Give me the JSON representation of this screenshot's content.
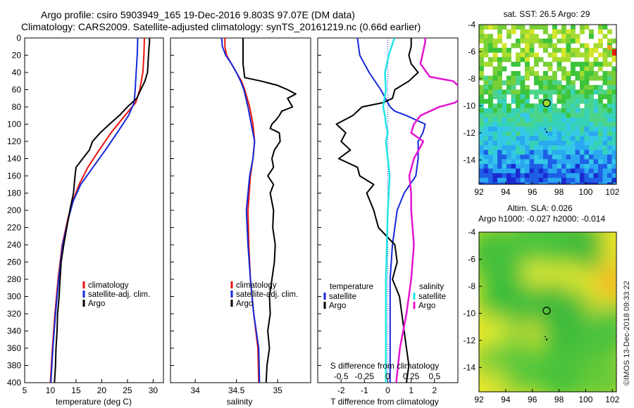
{
  "title": {
    "line1": "Argo profile: csiro 5903949_165 19-Dec-2016 9.803S 97.07E (DM data)",
    "line2": "Climatology: CARS2009. Satellite-adjusted climatology: synTS_20161219.nc (0.66d earlier)"
  },
  "watermark": "©IMOS 13-Dec-2018 09:33:22",
  "colors": {
    "climatology": "#e8130e",
    "satellite": "#1428d8",
    "argo": "#000000",
    "satellite_s": "#1ee6e6",
    "salinity": "#e614d2"
  },
  "chart_data": [
    {
      "id": "temperature",
      "type": "line",
      "xlabel": "temperature (deg C)",
      "ylabel": "",
      "xlim": [
        5,
        32
      ],
      "ylim": [
        400,
        0
      ],
      "xticks": [
        "5",
        "10",
        "15",
        "20",
        "25",
        "30"
      ],
      "xtick_values": [
        5,
        10,
        15,
        20,
        25,
        30
      ],
      "yticks": [
        "0",
        "20",
        "40",
        "60",
        "80",
        "100",
        "120",
        "140",
        "160",
        "180",
        "200",
        "220",
        "240",
        "260",
        "280",
        "300",
        "320",
        "340",
        "360",
        "380",
        "400"
      ],
      "legend": [
        "climatology",
        "satellite-adj. clim.",
        "Argo"
      ],
      "series": [
        {
          "name": "climatology",
          "depth": [
            0,
            20,
            40,
            60,
            75,
            90,
            110,
            130,
            150,
            170,
            190,
            210,
            240,
            280,
            320,
            360,
            400
          ],
          "values": [
            28.3,
            28.2,
            28.0,
            27.4,
            26.6,
            24.5,
            21.8,
            19.5,
            17.3,
            15.6,
            14.3,
            13.4,
            12.3,
            11.5,
            10.9,
            10.4,
            10.0
          ]
        },
        {
          "name": "satellite-adj. clim.",
          "depth": [
            0,
            20,
            40,
            60,
            75,
            90,
            110,
            130,
            150,
            170,
            190,
            210,
            240,
            280,
            320,
            360,
            400
          ],
          "values": [
            27.0,
            26.9,
            26.7,
            26.5,
            26.3,
            25.2,
            23.0,
            20.7,
            18.3,
            15.9,
            14.4,
            13.5,
            12.4,
            11.6,
            11.0,
            10.5,
            10.1
          ]
        },
        {
          "name": "Argo",
          "depth": [
            0,
            5,
            10,
            20,
            30,
            40,
            50,
            60,
            70,
            80,
            90,
            100,
            110,
            120,
            130,
            140,
            150,
            160,
            180,
            200,
            220,
            240,
            260,
            280,
            300,
            320,
            340,
            360,
            380,
            400
          ],
          "values": [
            29.3,
            29.3,
            29.2,
            29.1,
            29.0,
            28.9,
            28.4,
            27.6,
            26.8,
            25.0,
            23.4,
            21.5,
            19.7,
            18.2,
            17.6,
            16.3,
            15.0,
            14.8,
            14.5,
            13.8,
            13.2,
            12.6,
            12.1,
            11.9,
            11.7,
            11.4,
            11.3,
            11.1,
            11.0,
            10.8
          ]
        }
      ]
    },
    {
      "id": "salinity",
      "type": "line",
      "xlabel": "salinity",
      "xlim": [
        33.7,
        35.4
      ],
      "ylim": [
        400,
        0
      ],
      "xticks": [
        "34",
        "34.5",
        "35"
      ],
      "xtick_values": [
        34,
        34.5,
        35
      ],
      "legend": [
        "climatology",
        "satellite-adj. clim.",
        "Argo"
      ],
      "series": [
        {
          "name": "climatology",
          "depth": [
            0,
            10,
            20,
            30,
            40,
            50,
            60,
            80,
            100,
            120,
            140,
            160,
            200,
            240,
            280,
            320,
            360,
            400
          ],
          "values": [
            34.36,
            34.36,
            34.38,
            34.44,
            34.5,
            34.56,
            34.6,
            34.66,
            34.7,
            34.72,
            34.7,
            34.67,
            34.64,
            34.65,
            34.67,
            34.71,
            34.76,
            34.77
          ]
        },
        {
          "name": "satellite-adj. clim.",
          "depth": [
            0,
            10,
            20,
            30,
            40,
            50,
            60,
            80,
            100,
            120,
            140,
            160,
            200,
            240,
            280,
            320,
            360,
            400
          ],
          "values": [
            34.32,
            34.33,
            34.37,
            34.44,
            34.5,
            34.55,
            34.59,
            34.64,
            34.68,
            34.72,
            34.7,
            34.66,
            34.62,
            34.64,
            34.67,
            34.71,
            34.77,
            34.78
          ]
        },
        {
          "name": "Argo",
          "depth": [
            0,
            5,
            30,
            46,
            50,
            55,
            60,
            65,
            70,
            80,
            85,
            90,
            95,
            100,
            105,
            110,
            120,
            130,
            140,
            150,
            160,
            170,
            180,
            200,
            220,
            240,
            260,
            280,
            300,
            320,
            340,
            360,
            380,
            400
          ],
          "values": [
            34.58,
            34.58,
            34.58,
            34.6,
            34.8,
            35.0,
            35.12,
            35.22,
            35.12,
            35.18,
            35.05,
            35.02,
            34.98,
            34.93,
            34.91,
            35.02,
            35.03,
            34.96,
            34.93,
            34.95,
            34.88,
            34.95,
            34.91,
            34.95,
            34.94,
            34.97,
            34.96,
            34.93,
            34.9,
            34.91,
            34.88,
            34.9,
            34.87,
            34.86
          ]
        }
      ]
    },
    {
      "id": "difference",
      "type": "line",
      "xlabel": "T difference from climatology",
      "xlabel_top": "S difference from climatology",
      "xlim": [
        -3,
        3
      ],
      "ylim": [
        400,
        0
      ],
      "xticks": [
        "-2",
        "-1",
        "0",
        "1",
        "2"
      ],
      "xtick_values": [
        -2,
        -1,
        0,
        1,
        2
      ],
      "sticks": [
        "-0.5",
        "-0.25",
        "0",
        "0.25",
        "0.5"
      ],
      "stick_values": [
        -0.5,
        -0.25,
        0,
        0.25,
        0.5
      ],
      "legend_t": {
        "heading": "temperature",
        "items": [
          "satellite",
          "Argo"
        ]
      },
      "legend_s": {
        "heading": "salinity",
        "items": [
          "satellite",
          "Argo"
        ]
      },
      "series": [
        {
          "name": "T satellite",
          "depth": [
            0,
            20,
            40,
            60,
            80,
            85,
            90,
            100,
            110,
            120,
            140,
            160,
            180,
            200,
            240,
            280,
            320,
            360,
            400
          ],
          "values": [
            -1.3,
            -1.2,
            -0.8,
            -0.3,
            0.1,
            0.3,
            0.8,
            1.6,
            1.5,
            1.3,
            1.3,
            1.2,
            0.7,
            0.4,
            0.2,
            0.1,
            0.1,
            0.1,
            0.1
          ]
        },
        {
          "name": "T Argo",
          "depth": [
            0,
            10,
            20,
            30,
            40,
            50,
            60,
            70,
            75,
            80,
            90,
            100,
            110,
            120,
            130,
            140,
            150,
            160,
            170,
            180,
            200,
            220,
            240,
            260,
            280,
            300,
            320,
            340,
            360,
            380,
            400
          ],
          "values": [
            1.0,
            1.0,
            0.9,
            1.0,
            1.3,
            0.9,
            0.3,
            0.2,
            -0.2,
            -1.1,
            -1.5,
            -2.2,
            -1.8,
            -2.0,
            -1.6,
            -2.1,
            -1.3,
            -1.2,
            -0.6,
            -0.9,
            -0.6,
            -0.4,
            0.3,
            0.4,
            0.2,
            0.5,
            0.6,
            0.7,
            0.8,
            0.9,
            0.8
          ]
        },
        {
          "name": "S satellite",
          "depth": [
            0,
            20,
            40,
            60,
            80,
            90,
            100,
            110,
            120,
            140,
            160,
            200,
            240,
            280,
            320,
            360,
            400
          ],
          "values": [
            0.07,
            0.01,
            -0.03,
            -0.02,
            -0.05,
            -0.03,
            -0.02,
            0.0,
            -0.02,
            0.0,
            0.02,
            0.0,
            -0.01,
            -0.02,
            -0.02,
            -0.02,
            -0.02
          ]
        },
        {
          "name": "S Argo",
          "depth": [
            0,
            5,
            30,
            45,
            50,
            55,
            60,
            70,
            75,
            80,
            90,
            100,
            110,
            120,
            140,
            160,
            180,
            200,
            240,
            280,
            320,
            360,
            400
          ],
          "values": [
            0.4,
            0.4,
            0.35,
            0.45,
            0.7,
            0.75,
            0.8,
            0.78,
            0.72,
            0.55,
            0.35,
            0.28,
            0.25,
            0.38,
            0.28,
            0.23,
            0.25,
            0.25,
            0.28,
            0.25,
            0.2,
            0.13,
            0.09
          ]
        }
      ]
    },
    {
      "id": "sst_map",
      "type": "heatmap",
      "title": "sat. SST: 26.5  Argo: 29",
      "xticks": [
        "92",
        "94",
        "96",
        "98",
        "100",
        "102"
      ],
      "xtick_values": [
        92,
        94,
        96,
        98,
        100,
        102
      ],
      "yticks": [
        "-4",
        "-6",
        "-8",
        "-10",
        "-12",
        "-14"
      ],
      "ytick_values": [
        -4,
        -6,
        -8,
        -10,
        -12,
        -14
      ],
      "xlim": [
        92,
        102.3
      ],
      "ylim": [
        -15.8,
        -4
      ],
      "argo_position": {
        "lon": 97.07,
        "lat": -9.803
      }
    },
    {
      "id": "sla_map",
      "type": "heatmap",
      "title": "Altim. SLA: 0.026",
      "subtitle": "Argo h1000: -0.027  h2000: -0.014",
      "xticks": [
        "92",
        "94",
        "96",
        "98",
        "100",
        "102"
      ],
      "xtick_values": [
        92,
        94,
        96,
        98,
        100,
        102
      ],
      "yticks": [
        "-4",
        "-6",
        "-8",
        "-10",
        "-12",
        "-14"
      ],
      "ytick_values": [
        -4,
        -6,
        -8,
        -10,
        -12,
        -14
      ],
      "xlim": [
        92,
        102.3
      ],
      "ylim": [
        -15.8,
        -4
      ],
      "argo_position": {
        "lon": 97.07,
        "lat": -9.803
      }
    }
  ]
}
